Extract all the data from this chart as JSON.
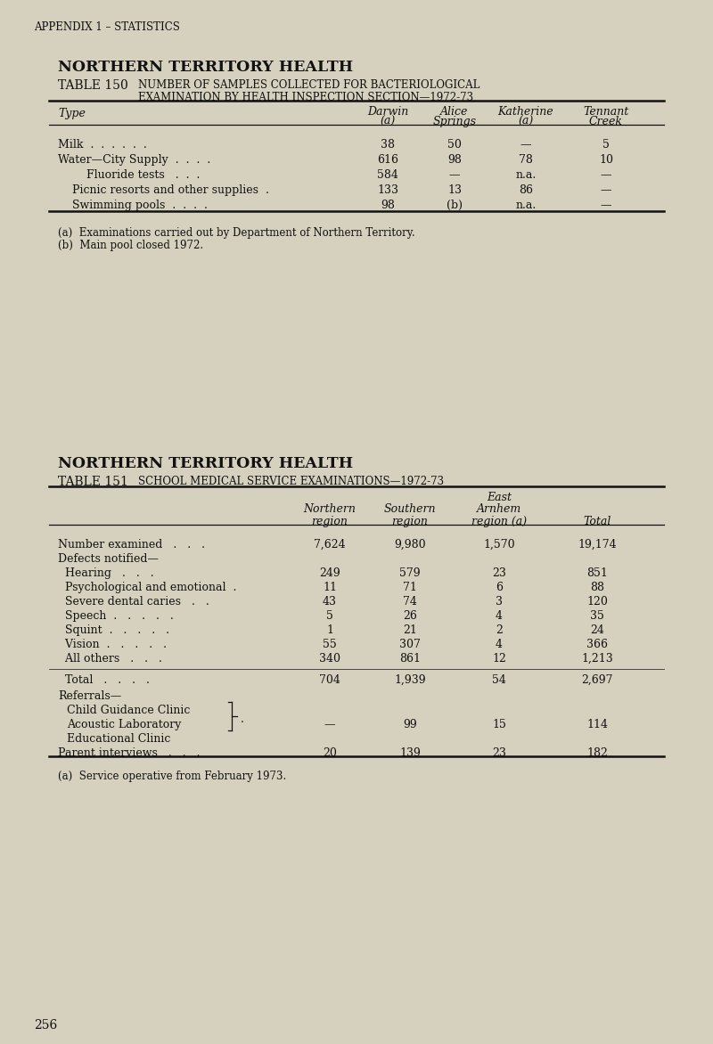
{
  "bg_color": "#d6d0be",
  "text_color": "#111111",
  "page_number": "256",
  "appendix_label": "APPENDIX 1 – STATISTICS",
  "table1": {
    "title_bold": "NORTHERN TERRITORY HEALTH",
    "title_table": "TABLE 150",
    "title_desc_line1": "NUMBER OF SAMPLES COLLECTED FOR BACTERIOLOGICAL",
    "title_desc_line2": "EXAMINATION BY HEALTH INSPECTION SECTION—1972-73",
    "rows": [
      [
        "Milk  .  .  .  .  .  .",
        "38",
        "50",
        "—",
        "5"
      ],
      [
        "Water—City Supply  .  .  .  .",
        "616",
        "98",
        "78",
        "10"
      ],
      [
        "        Fluoride tests   .  .  .",
        "584",
        "—",
        "n.a.",
        "—"
      ],
      [
        "    Picnic resorts and other supplies  .",
        "133",
        "13",
        "86",
        "—"
      ],
      [
        "    Swimming pools  .  .  .  .",
        "98",
        "(b)",
        "n.a.",
        "—"
      ]
    ],
    "footnotes": [
      "(a)  Examinations carried out by Department of Northern Territory.",
      "(b)  Main pool closed 1972."
    ]
  },
  "table2": {
    "title_bold": "NORTHERN TERRITORY HEALTH",
    "title_table": "TABLE 151",
    "title_desc": "SCHOOL MEDICAL SERVICE EXAMINATIONS—1972-73",
    "footnote": "(a)  Service operative from February 1973."
  }
}
